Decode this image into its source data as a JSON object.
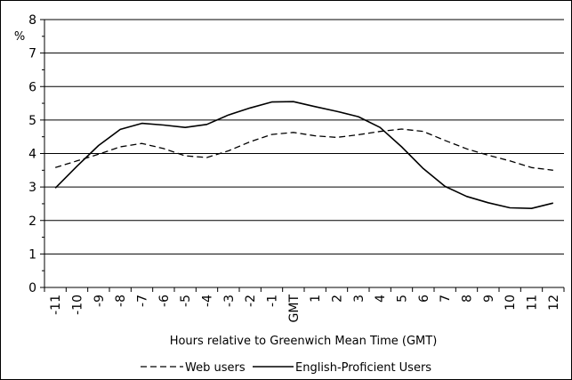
{
  "chart_data": {
    "type": "line",
    "ylabel": "%",
    "xlabel": "Hours relative to Greenwich Mean Time (GMT)",
    "ylim": [
      0,
      8
    ],
    "yticks": [
      0,
      1,
      2,
      3,
      4,
      5,
      6,
      7,
      8
    ],
    "categories": [
      "-11",
      "-10",
      "-9",
      "-8",
      "-7",
      "-6",
      "-5",
      "-4",
      "-3",
      "-2",
      "-1",
      "GMT",
      "1",
      "2",
      "3",
      "4",
      "5",
      "6",
      "7",
      "8",
      "9",
      "10",
      "11",
      "12"
    ],
    "grid": "horizontal",
    "legend_position": "bottom",
    "series": [
      {
        "name": "Web users",
        "style": "dashed",
        "color": "#000000",
        "values": [
          3.58,
          3.78,
          3.98,
          4.2,
          4.3,
          4.15,
          3.93,
          3.88,
          4.08,
          4.35,
          4.57,
          4.63,
          4.53,
          4.48,
          4.56,
          4.66,
          4.73,
          4.66,
          4.39,
          4.14,
          3.95,
          3.78,
          3.58,
          3.5
        ]
      },
      {
        "name": "English-Proficient Users",
        "style": "solid",
        "color": "#000000",
        "values": [
          2.97,
          3.62,
          4.24,
          4.72,
          4.9,
          4.85,
          4.78,
          4.87,
          5.15,
          5.36,
          5.54,
          5.55,
          5.4,
          5.26,
          5.1,
          4.78,
          4.2,
          3.55,
          3.02,
          2.72,
          2.53,
          2.38,
          2.36,
          2.52
        ]
      }
    ]
  }
}
